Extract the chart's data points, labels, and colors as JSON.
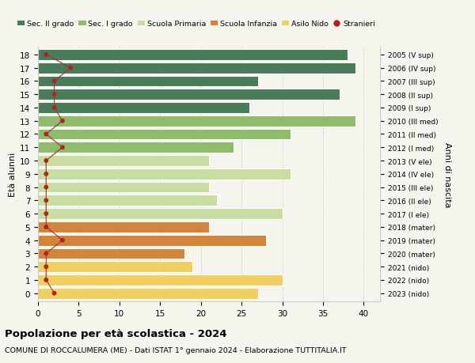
{
  "ages": [
    18,
    17,
    16,
    15,
    14,
    13,
    12,
    11,
    10,
    9,
    8,
    7,
    6,
    5,
    4,
    3,
    2,
    1,
    0
  ],
  "right_labels": [
    "2005 (V sup)",
    "2006 (IV sup)",
    "2007 (III sup)",
    "2008 (II sup)",
    "2009 (I sup)",
    "2010 (III med)",
    "2011 (II med)",
    "2012 (I med)",
    "2013 (V ele)",
    "2014 (IV ele)",
    "2015 (III ele)",
    "2016 (II ele)",
    "2017 (I ele)",
    "2018 (mater)",
    "2019 (mater)",
    "2020 (mater)",
    "2021 (nido)",
    "2022 (nido)",
    "2023 (nido)"
  ],
  "bar_values": [
    38,
    39,
    27,
    37,
    26,
    39,
    31,
    24,
    21,
    31,
    21,
    22,
    30,
    21,
    28,
    18,
    19,
    30,
    27
  ],
  "bar_colors": [
    "#4a7c59",
    "#4a7c59",
    "#4a7c59",
    "#4a7c59",
    "#4a7c59",
    "#8fbc6a",
    "#8fbc6a",
    "#8fbc6a",
    "#c8dda0",
    "#c8dda0",
    "#c8dda0",
    "#c8dda0",
    "#c8dda0",
    "#d4833a",
    "#d4833a",
    "#d4833a",
    "#f0d060",
    "#f0d060",
    "#f0d060"
  ],
  "stranieri_values": [
    1,
    4,
    2,
    2,
    2,
    3,
    1,
    3,
    1,
    1,
    1,
    1,
    1,
    1,
    3,
    1,
    1,
    1,
    2
  ],
  "legend_labels": [
    "Sec. II grado",
    "Sec. I grado",
    "Scuola Primaria",
    "Scuola Infanzia",
    "Asilo Nido",
    "Stranieri"
  ],
  "legend_colors": [
    "#4a7c59",
    "#8fbc6a",
    "#c8dda0",
    "#d4833a",
    "#f0d060",
    "#b22222"
  ],
  "ylabel": "Età alunni",
  "ylabel_right": "Anni di nascita",
  "title": "Popolazione per età scolastica - 2024",
  "subtitle": "COMUNE DI ROCCALUMERA (ME) - Dati ISTAT 1° gennaio 2024 - Elaborazione TUTTITALIA.IT",
  "xlim": [
    0,
    42
  ],
  "background_color": "#f5f5ee",
  "bar_edge_color": "white",
  "grid_color": "#cccccc",
  "stranieri_color": "#b22222",
  "stranieri_line_color": "#993333"
}
